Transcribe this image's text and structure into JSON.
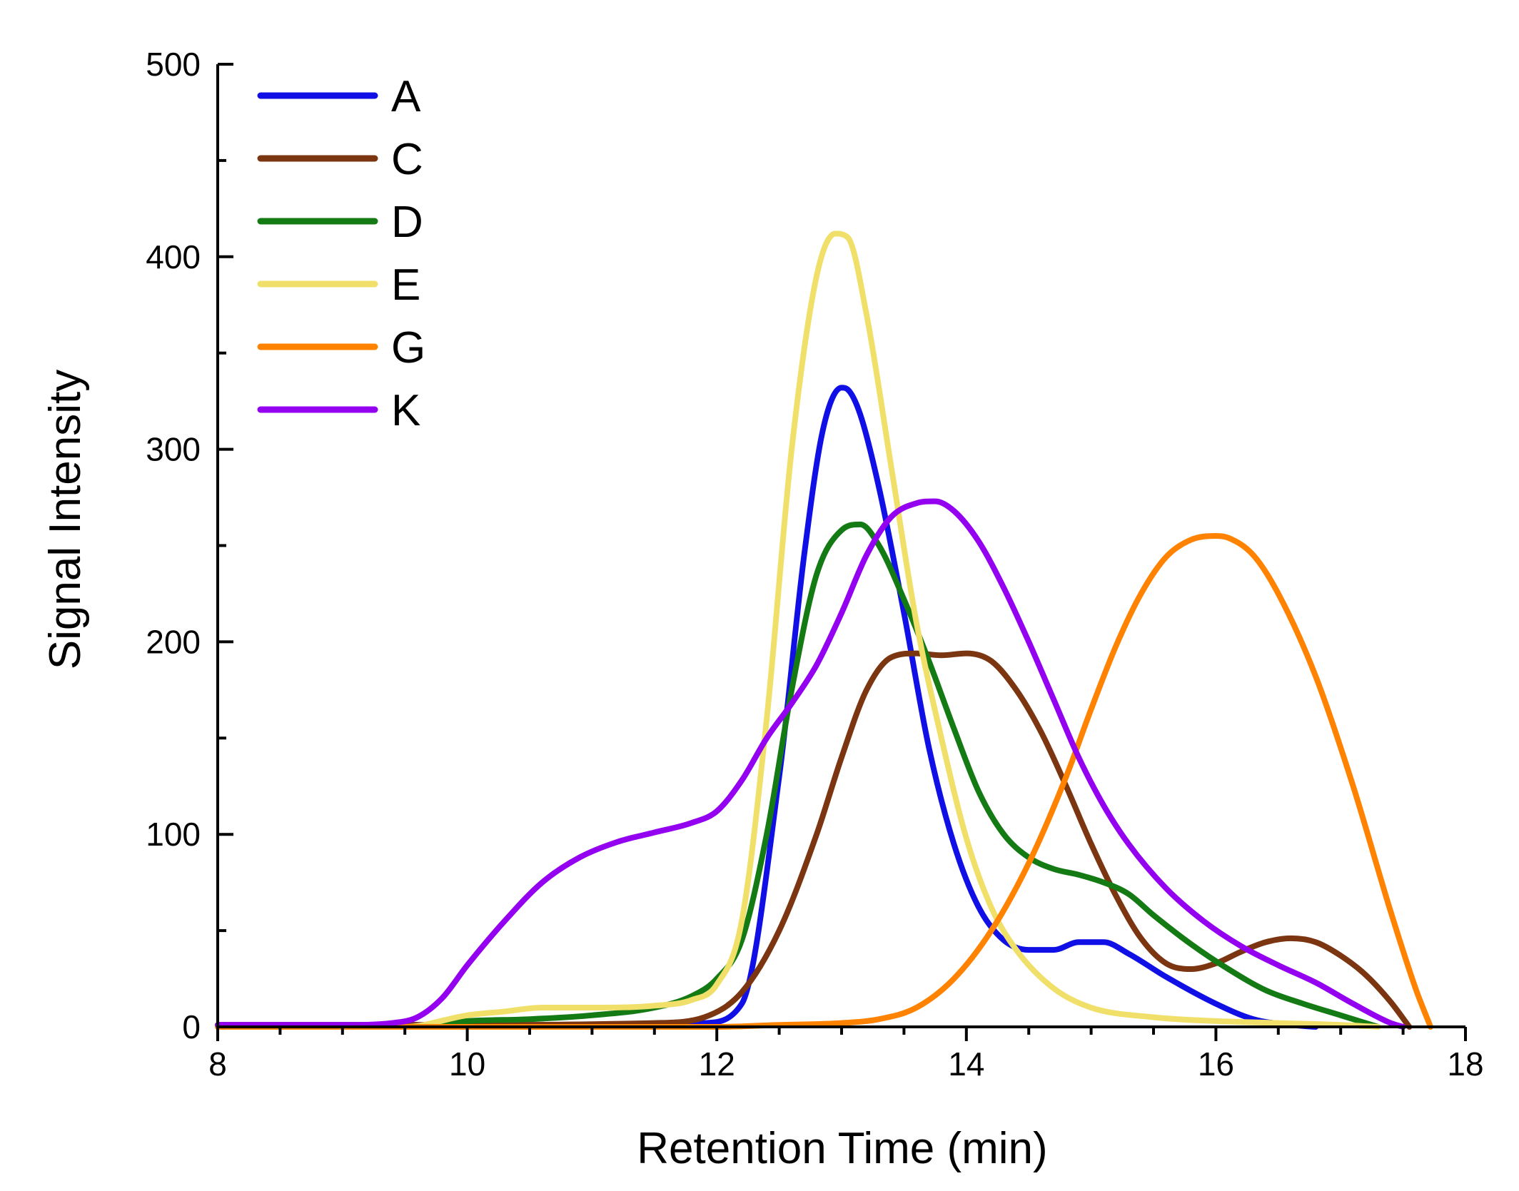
{
  "chart_data": {
    "type": "line",
    "title": "",
    "xlabel": "Retention Time (min)",
    "ylabel": "Signal Intensity",
    "xlim": [
      8,
      18
    ],
    "ylim": [
      0,
      500
    ],
    "x_ticks": [
      8,
      10,
      12,
      14,
      16,
      18
    ],
    "y_ticks": [
      0,
      100,
      200,
      300,
      400,
      500
    ],
    "x_minor_step": 0.5,
    "y_minor_step": 50,
    "legend_position": "top-left",
    "series": [
      {
        "name": "A",
        "color": "#1010e6",
        "x": [
          8,
          9,
          11.5,
          11.9,
          12.2,
          12.5,
          12.7,
          12.85,
          13.0,
          13.05,
          13.15,
          13.3,
          13.5,
          13.7,
          13.9,
          14.1,
          14.3,
          14.5,
          14.7,
          14.9,
          15.1,
          15.3,
          15.6,
          16.0,
          16.3,
          16.6,
          16.8
        ],
        "values": [
          1,
          1,
          1,
          2,
          12,
          130,
          245,
          310,
          332,
          331,
          318,
          280,
          215,
          145,
          95,
          62,
          45,
          40,
          40,
          44,
          44,
          38,
          26,
          12,
          4,
          1,
          0
        ]
      },
      {
        "name": "C",
        "color": "#7b3510",
        "x": [
          8,
          10,
          11.5,
          11.9,
          12.2,
          12.5,
          12.8,
          13.0,
          13.2,
          13.4,
          13.6,
          13.8,
          14.0,
          14.2,
          14.4,
          14.6,
          14.8,
          15.0,
          15.2,
          15.4,
          15.6,
          15.8,
          16.0,
          16.2,
          16.4,
          16.6,
          16.8,
          17.0,
          17.2,
          17.4,
          17.55
        ],
        "values": [
          1,
          1,
          2,
          5,
          18,
          50,
          100,
          140,
          175,
          192,
          194,
          193,
          194,
          190,
          175,
          153,
          125,
          95,
          68,
          46,
          33,
          30,
          33,
          39,
          44,
          46,
          44,
          37,
          27,
          13,
          0
        ]
      },
      {
        "name": "D",
        "color": "#147a14",
        "x": [
          8,
          9.5,
          10,
          10.5,
          11,
          11.5,
          11.8,
          12.0,
          12.2,
          12.4,
          12.6,
          12.8,
          13.0,
          13.15,
          13.3,
          13.5,
          13.7,
          13.9,
          14.1,
          14.3,
          14.5,
          14.7,
          14.9,
          15.1,
          15.3,
          15.5,
          15.8,
          16.1,
          16.4,
          16.7,
          17.0,
          17.3
        ],
        "values": [
          0,
          0,
          3,
          4,
          6,
          10,
          16,
          25,
          45,
          100,
          175,
          235,
          258,
          261,
          250,
          222,
          190,
          155,
          122,
          100,
          88,
          82,
          79,
          75,
          69,
          58,
          43,
          30,
          19,
          12,
          6,
          0
        ]
      },
      {
        "name": "E",
        "color": "#f0e06a",
        "x": [
          8,
          9.5,
          10,
          10.3,
          10.6,
          11,
          11.5,
          11.8,
          12.0,
          12.2,
          12.4,
          12.6,
          12.8,
          12.95,
          13.05,
          13.2,
          13.4,
          13.6,
          13.8,
          14.0,
          14.2,
          14.4,
          14.7,
          15.0,
          15.5,
          16.0,
          16.5,
          17.0,
          17.3
        ],
        "values": [
          0,
          0,
          6,
          8,
          10,
          10,
          11,
          14,
          22,
          55,
          160,
          300,
          390,
          412,
          410,
          370,
          290,
          210,
          150,
          98,
          62,
          40,
          20,
          10,
          5,
          3,
          2,
          1,
          0
        ]
      },
      {
        "name": "G",
        "color": "#ff8200",
        "x": [
          8,
          11,
          12,
          12.5,
          13,
          13.3,
          13.6,
          13.9,
          14.2,
          14.5,
          14.8,
          15.0,
          15.2,
          15.4,
          15.6,
          15.8,
          16.0,
          16.1,
          16.3,
          16.5,
          16.8,
          17.1,
          17.4,
          17.6,
          17.72
        ],
        "values": [
          0,
          0,
          0,
          1,
          2,
          4,
          10,
          25,
          50,
          85,
          130,
          165,
          198,
          225,
          244,
          253,
          255,
          254,
          245,
          225,
          182,
          125,
          60,
          20,
          0
        ]
      },
      {
        "name": "K",
        "color": "#9400f0",
        "x": [
          8,
          9,
          9.4,
          9.6,
          9.8,
          10.0,
          10.3,
          10.6,
          10.9,
          11.2,
          11.5,
          11.8,
          12.0,
          12.2,
          12.4,
          12.6,
          12.8,
          13.0,
          13.2,
          13.4,
          13.6,
          13.75,
          13.9,
          14.1,
          14.3,
          14.5,
          14.7,
          14.9,
          15.1,
          15.3,
          15.6,
          15.9,
          16.2,
          16.5,
          16.8,
          17.1,
          17.4,
          17.5
        ],
        "values": [
          1,
          1,
          2,
          5,
          15,
          32,
          55,
          75,
          88,
          96,
          101,
          106,
          112,
          128,
          150,
          168,
          188,
          215,
          245,
          265,
          272,
          273,
          268,
          252,
          228,
          200,
          170,
          140,
          115,
          95,
          72,
          55,
          42,
          32,
          23,
          12,
          2,
          0
        ]
      }
    ]
  }
}
